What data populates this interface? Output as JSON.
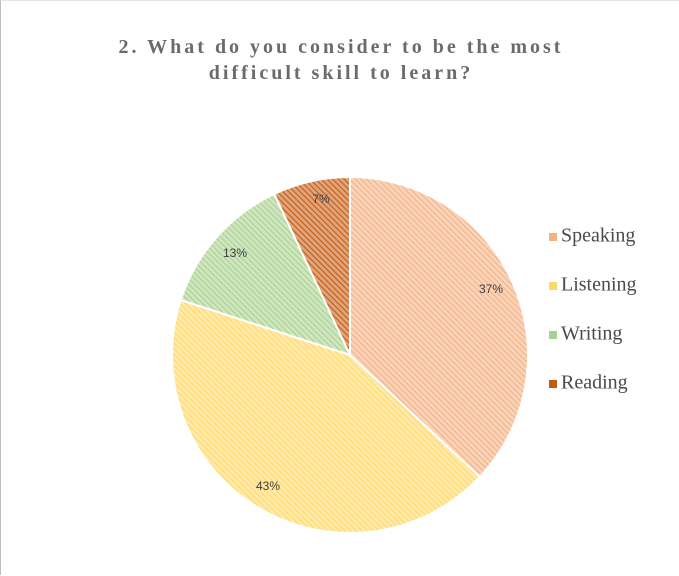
{
  "chart_data": {
    "type": "pie",
    "title_lines": [
      "2. What do you consider to be the most",
      "difficult skill to learn?"
    ],
    "categories": [
      "Speaking",
      "Listening",
      "Writing",
      "Reading"
    ],
    "values": [
      37,
      43,
      13,
      7
    ],
    "data_labels": [
      "37%",
      "43%",
      "13%",
      "7%"
    ],
    "colors": [
      "#f4b183",
      "#ffd966",
      "#a9d18e",
      "#c55a11"
    ],
    "legend_position": "right",
    "start_angle": "12 o'clock",
    "direction": "clockwise",
    "fill_pattern": "diagonal hatch"
  }
}
